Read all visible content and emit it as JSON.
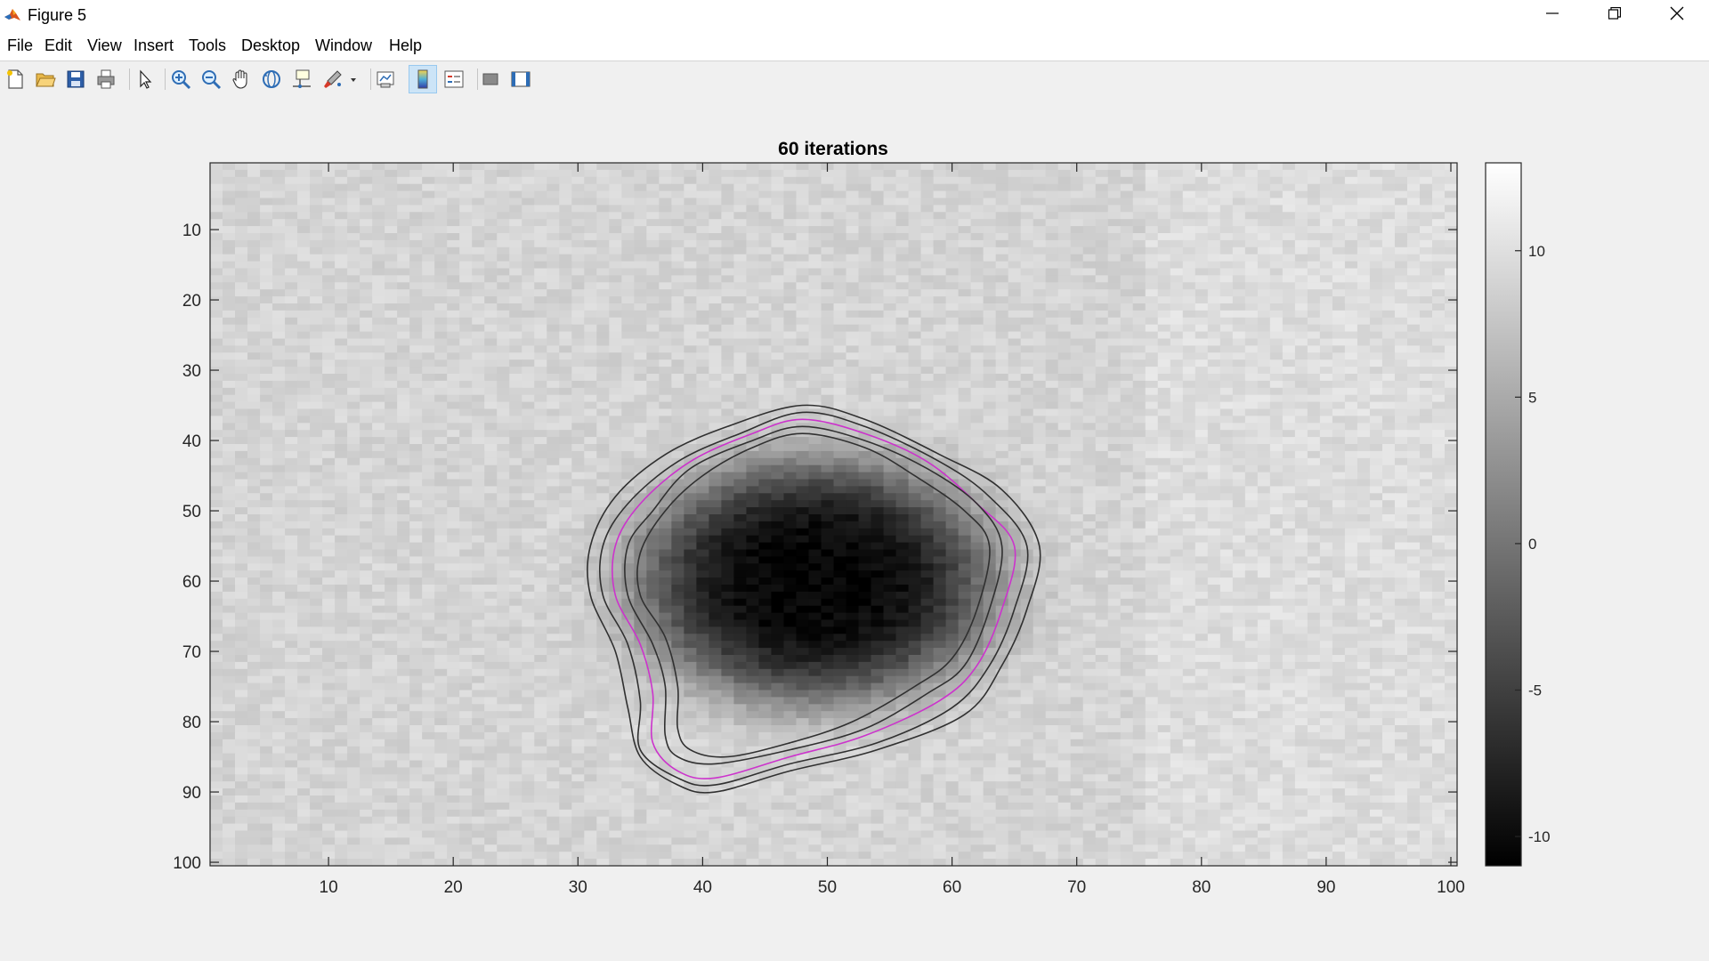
{
  "window": {
    "title": "Figure 5",
    "minimize_icon": "minimize-icon",
    "maximize_icon": "restore-icon",
    "close_icon": "close-icon"
  },
  "menu": {
    "items": [
      "File",
      "Edit",
      "View",
      "Insert",
      "Tools",
      "Desktop",
      "Window",
      "Help"
    ]
  },
  "toolbar": {
    "buttons": [
      "new-figure-icon",
      "open-file-icon",
      "save-icon",
      "print-icon",
      "edit-plot-arrow-icon",
      "zoom-in-icon",
      "zoom-out-icon",
      "pan-hand-icon",
      "rotate-3d-icon",
      "data-cursor-icon",
      "brush-icon",
      "link-plot-icon",
      "insert-colorbar-icon",
      "insert-legend-icon",
      "hide-plot-tools-icon",
      "show-plot-tools-icon"
    ],
    "active_button": "insert-colorbar-icon"
  },
  "chart_data": {
    "type": "heatmap",
    "title": "60 iterations",
    "xlabel": "",
    "ylabel": "",
    "xlim": [
      1,
      100
    ],
    "ylim": [
      1,
      100
    ],
    "y_direction": "reverse",
    "x_ticks": [
      10,
      20,
      30,
      40,
      50,
      60,
      70,
      80,
      90,
      100
    ],
    "y_ticks": [
      10,
      20,
      30,
      40,
      50,
      60,
      70,
      80,
      90,
      100
    ],
    "colormap": "gray",
    "clim": [
      -11,
      13
    ],
    "colorbar_ticks": [
      10,
      5,
      0,
      -5,
      -10
    ],
    "background_value": 9,
    "blob": {
      "center_x": 49,
      "center_y": 60,
      "min_value": -10.5
    },
    "contours": [
      {
        "color": "#303030",
        "points": [
          [
            31,
            55
          ],
          [
            33,
            48
          ],
          [
            37,
            42
          ],
          [
            42,
            38
          ],
          [
            48,
            35
          ],
          [
            53,
            37
          ],
          [
            59,
            42
          ],
          [
            64,
            47
          ],
          [
            67,
            55
          ],
          [
            66,
            64
          ],
          [
            64,
            72
          ],
          [
            61,
            79
          ],
          [
            54,
            84
          ],
          [
            47,
            87
          ],
          [
            41,
            90
          ],
          [
            38,
            89
          ],
          [
            35,
            85
          ],
          [
            34,
            78
          ],
          [
            33,
            70
          ],
          [
            31,
            62
          ]
        ]
      },
      {
        "color": "#303030",
        "points": [
          [
            32,
            55
          ],
          [
            34,
            49
          ],
          [
            38,
            43
          ],
          [
            43,
            39
          ],
          [
            48,
            36
          ],
          [
            53,
            38
          ],
          [
            59,
            43
          ],
          [
            63,
            48
          ],
          [
            66,
            55
          ],
          [
            65,
            64
          ],
          [
            63,
            72
          ],
          [
            60,
            78
          ],
          [
            54,
            83
          ],
          [
            47,
            86
          ],
          [
            41,
            89
          ],
          [
            38,
            88
          ],
          [
            35,
            84
          ],
          [
            35,
            77
          ],
          [
            34,
            69
          ],
          [
            32,
            62
          ]
        ]
      },
      {
        "color": "#cc33cc",
        "points": [
          [
            33,
            55
          ],
          [
            35,
            49
          ],
          [
            39,
            43
          ],
          [
            44,
            39
          ],
          [
            48,
            37
          ],
          [
            53,
            39
          ],
          [
            58,
            43
          ],
          [
            62,
            49
          ],
          [
            65,
            55
          ],
          [
            64,
            64
          ],
          [
            62,
            72
          ],
          [
            59,
            77
          ],
          [
            53,
            82
          ],
          [
            47,
            85
          ],
          [
            41,
            88
          ],
          [
            38,
            87
          ],
          [
            36,
            83
          ],
          [
            36,
            76
          ],
          [
            35,
            69
          ],
          [
            33,
            62
          ]
        ]
      },
      {
        "color": "#303030",
        "points": [
          [
            34,
            55
          ],
          [
            36,
            50
          ],
          [
            39,
            44
          ],
          [
            44,
            40
          ],
          [
            48,
            38
          ],
          [
            53,
            40
          ],
          [
            58,
            44
          ],
          [
            62,
            49
          ],
          [
            64,
            55
          ],
          [
            63,
            64
          ],
          [
            61,
            72
          ],
          [
            58,
            76
          ],
          [
            53,
            81
          ],
          [
            47,
            84
          ],
          [
            41,
            86
          ],
          [
            38,
            85
          ],
          [
            37,
            82
          ],
          [
            37,
            75
          ],
          [
            36,
            69
          ],
          [
            34,
            62
          ]
        ]
      },
      {
        "color": "#303030",
        "points": [
          [
            35,
            56
          ],
          [
            37,
            50
          ],
          [
            40,
            45
          ],
          [
            44,
            41
          ],
          [
            48,
            39
          ],
          [
            53,
            41
          ],
          [
            57,
            45
          ],
          [
            61,
            50
          ],
          [
            63,
            55
          ],
          [
            62,
            64
          ],
          [
            60,
            71
          ],
          [
            57,
            75
          ],
          [
            52,
            80
          ],
          [
            47,
            83
          ],
          [
            42,
            85
          ],
          [
            39,
            84
          ],
          [
            38,
            81
          ],
          [
            38,
            75
          ],
          [
            37,
            68
          ],
          [
            35,
            62
          ]
        ]
      }
    ]
  }
}
